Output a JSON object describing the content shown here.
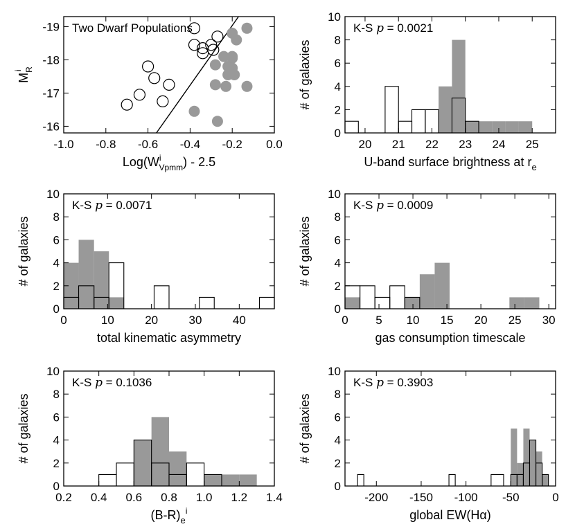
{
  "chart_data": [
    {
      "type": "scatter",
      "annotation": "Two Dwarf Populations",
      "xlabel": {
        "base": "Log(W",
        "sup": "i",
        "sub": "Vpmm",
        "tail": ") - 2.5"
      },
      "ylabel": {
        "base": "M",
        "sub": "R",
        "sup": "i"
      },
      "xlim": [
        -1.0,
        0.0
      ],
      "ylim": [
        -15.8,
        -19.3
      ],
      "xticks": [
        "-1.0",
        "-0.8",
        "-0.6",
        "-0.4",
        "-0.2",
        "0.0"
      ],
      "xtick_values": [
        -1.0,
        -0.8,
        -0.6,
        -0.4,
        -0.2,
        0.0
      ],
      "yticks": [
        "-16",
        "-17",
        "-18",
        "-19"
      ],
      "ytick_values": [
        -16,
        -17,
        -18,
        -19
      ],
      "line": {
        "x": [
          -0.56,
          -0.17
        ],
        "y": [
          -15.8,
          -19.3
        ]
      },
      "series": [
        {
          "marker": "open-circle",
          "points": [
            [
              -0.7,
              -16.65
            ],
            [
              -0.64,
              -16.95
            ],
            [
              -0.6,
              -17.8
            ],
            [
              -0.57,
              -17.45
            ],
            [
              -0.53,
              -16.75
            ],
            [
              -0.5,
              -17.25
            ],
            [
              -0.38,
              -18.95
            ],
            [
              -0.38,
              -18.45
            ],
            [
              -0.34,
              -18.35
            ],
            [
              -0.34,
              -18.2
            ],
            [
              -0.3,
              -18.45
            ],
            [
              -0.29,
              -18.3
            ],
            [
              -0.27,
              -18.7
            ]
          ]
        },
        {
          "marker": "filled-circle",
          "points": [
            [
              -0.38,
              -16.45
            ],
            [
              -0.27,
              -16.15
            ],
            [
              -0.28,
              -17.25
            ],
            [
              -0.28,
              -17.85
            ],
            [
              -0.24,
              -18.1
            ],
            [
              -0.22,
              -17.8
            ],
            [
              -0.22,
              -17.55
            ],
            [
              -0.2,
              -18.05
            ],
            [
              -0.2,
              -17.75
            ],
            [
              -0.23,
              -17.2
            ],
            [
              -0.19,
              -17.55
            ],
            [
              -0.2,
              -18.8
            ],
            [
              -0.18,
              -18.6
            ],
            [
              -0.13,
              -18.95
            ],
            [
              -0.13,
              -17.2
            ],
            [
              -0.2,
              -18.1
            ]
          ]
        }
      ],
      "color_filled": "#999999"
    },
    {
      "type": "histogram",
      "annotation": {
        "prefix": "K-S ",
        "p": "p",
        "value": " = 0.0021"
      },
      "xlabel": {
        "base": "U-band surface brightness at r",
        "sub": "e"
      },
      "ylabel": "# of galaxies",
      "xlim": [
        19.4,
        25.7
      ],
      "ylim": [
        0,
        10
      ],
      "xticks": [
        "20",
        "21",
        "22",
        "23",
        "24",
        "25"
      ],
      "xtick_values": [
        20,
        21,
        22,
        23,
        24,
        25
      ],
      "yticks": [
        "0",
        "2",
        "4",
        "6",
        "8",
        "10"
      ],
      "ytick_values": [
        0,
        2,
        4,
        6,
        8,
        10
      ],
      "bins": [
        [
          19.4,
          19.8
        ],
        [
          19.8,
          20.2
        ],
        [
          20.2,
          20.6
        ],
        [
          20.6,
          21.0
        ],
        [
          21.0,
          21.4
        ],
        [
          21.4,
          21.8
        ],
        [
          21.8,
          22.2
        ],
        [
          22.2,
          22.6
        ],
        [
          22.6,
          23.0
        ],
        [
          23.0,
          23.4
        ],
        [
          23.4,
          23.8
        ],
        [
          23.8,
          24.2
        ],
        [
          24.2,
          24.6
        ],
        [
          24.6,
          25.0
        ]
      ],
      "filled": [
        0,
        0,
        0,
        0,
        0,
        0,
        0,
        4,
        8,
        1,
        1,
        1,
        1,
        1
      ],
      "open": [
        1,
        0,
        0,
        4,
        1,
        2,
        2,
        0,
        3,
        1,
        0,
        0,
        0,
        0
      ],
      "color_filled": "#999999"
    },
    {
      "type": "histogram",
      "annotation": {
        "prefix": "K-S ",
        "p": "p",
        "value": " = 0.0071"
      },
      "xlabel": {
        "base": "total kinematic asymmetry"
      },
      "ylabel": "# of galaxies",
      "xlim": [
        0,
        48
      ],
      "ylim": [
        0,
        10
      ],
      "xticks": [
        "0",
        "10",
        "20",
        "30",
        "40"
      ],
      "xtick_values": [
        0,
        10,
        20,
        30,
        40
      ],
      "yticks": [
        "0",
        "2",
        "4",
        "6",
        "8",
        "10"
      ],
      "ytick_values": [
        0,
        2,
        4,
        6,
        8,
        10
      ],
      "bins": [
        [
          0,
          3.4
        ],
        [
          3.4,
          6.9
        ],
        [
          6.9,
          10.3
        ],
        [
          10.3,
          13.7
        ],
        [
          20.6,
          24.0
        ],
        [
          30.9,
          34.3
        ],
        [
          44.6,
          48.0
        ]
      ],
      "filled": [
        4,
        6,
        5,
        1,
        0,
        0,
        0
      ],
      "open": [
        1,
        2,
        1,
        4,
        2,
        1,
        1
      ],
      "color_filled": "#999999"
    },
    {
      "type": "histogram",
      "annotation": {
        "prefix": "K-S ",
        "p": "p",
        "value": " = 0.0009"
      },
      "xlabel": {
        "base": "gas consumption timescale"
      },
      "ylabel": "# of galaxies",
      "xlim": [
        0,
        31
      ],
      "ylim": [
        0,
        10
      ],
      "xticks": [
        "0",
        "5",
        "10",
        "15",
        "20",
        "25",
        "30"
      ],
      "xtick_values": [
        0,
        5,
        10,
        15,
        20,
        25,
        30
      ],
      "yticks": [
        "0",
        "2",
        "4",
        "6",
        "8",
        "10"
      ],
      "ytick_values": [
        0,
        2,
        4,
        6,
        8,
        10
      ],
      "bins": [
        [
          0,
          2.2
        ],
        [
          2.2,
          4.4
        ],
        [
          4.4,
          6.6
        ],
        [
          6.6,
          8.8
        ],
        [
          8.8,
          11.0
        ],
        [
          11.0,
          13.2
        ],
        [
          13.2,
          15.4
        ],
        [
          24.2,
          26.4
        ],
        [
          26.4,
          28.6
        ]
      ],
      "filled": [
        1,
        0,
        0,
        0,
        1,
        3,
        4,
        1,
        1
      ],
      "open": [
        2,
        2,
        1,
        2,
        1,
        0,
        0,
        0,
        0
      ],
      "color_filled": "#999999"
    },
    {
      "type": "histogram",
      "annotation": {
        "prefix": "K-S ",
        "p": "p",
        "value": " = 0.1036"
      },
      "xlabel": {
        "base": "(B-R)",
        "sub": "e",
        "sup": "i"
      },
      "ylabel": "# of galaxies",
      "xlim": [
        0.2,
        1.4
      ],
      "ylim": [
        0,
        10
      ],
      "xticks": [
        "0.2",
        "0.4",
        "0.6",
        "0.8",
        "1.0",
        "1.2",
        "1.4"
      ],
      "xtick_values": [
        0.2,
        0.4,
        0.6,
        0.8,
        1.0,
        1.2,
        1.4
      ],
      "yticks": [
        "0",
        "2",
        "4",
        "6",
        "8",
        "10"
      ],
      "ytick_values": [
        0,
        2,
        4,
        6,
        8,
        10
      ],
      "bins": [
        [
          0.4,
          0.5
        ],
        [
          0.5,
          0.6
        ],
        [
          0.6,
          0.7
        ],
        [
          0.7,
          0.8
        ],
        [
          0.8,
          0.9
        ],
        [
          0.9,
          1.0
        ],
        [
          1.0,
          1.1
        ],
        [
          1.1,
          1.2
        ],
        [
          1.2,
          1.3
        ]
      ],
      "filled": [
        0,
        0,
        4,
        6,
        3,
        0,
        1,
        1,
        1
      ],
      "open": [
        1,
        2,
        4,
        2,
        1,
        2,
        1,
        0,
        0
      ],
      "color_filled": "#999999"
    },
    {
      "type": "histogram",
      "annotation": {
        "prefix": "K-S ",
        "p": "p",
        "value": " = 0.3903"
      },
      "xlabel": {
        "base": "global EW(H",
        "greek": "α",
        "tail": ")"
      },
      "ylabel": "# of galaxies",
      "xlim": [
        -235,
        0
      ],
      "ylim": [
        0,
        10
      ],
      "xticks": [
        "-200",
        "-150",
        "-100",
        "-50",
        "0"
      ],
      "xtick_values": [
        -200,
        -150,
        -100,
        -50,
        0
      ],
      "yticks": [
        "0",
        "2",
        "4",
        "6",
        "8",
        "10"
      ],
      "ytick_values": [
        0,
        2,
        4,
        6,
        8,
        10
      ],
      "bins": [
        [
          -221,
          -214
        ],
        [
          -119,
          -112
        ],
        [
          -72,
          -58
        ],
        [
          -50,
          -43
        ],
        [
          -43,
          -36
        ],
        [
          -36,
          -29
        ],
        [
          -29,
          -22
        ],
        [
          -22,
          -15
        ],
        [
          -15,
          -8
        ]
      ],
      "filled": [
        0,
        0,
        0,
        5,
        2,
        5,
        4,
        3,
        1
      ],
      "open": [
        1,
        1,
        1,
        1,
        1,
        2,
        4,
        2,
        1
      ],
      "color_filled": "#999999"
    }
  ]
}
